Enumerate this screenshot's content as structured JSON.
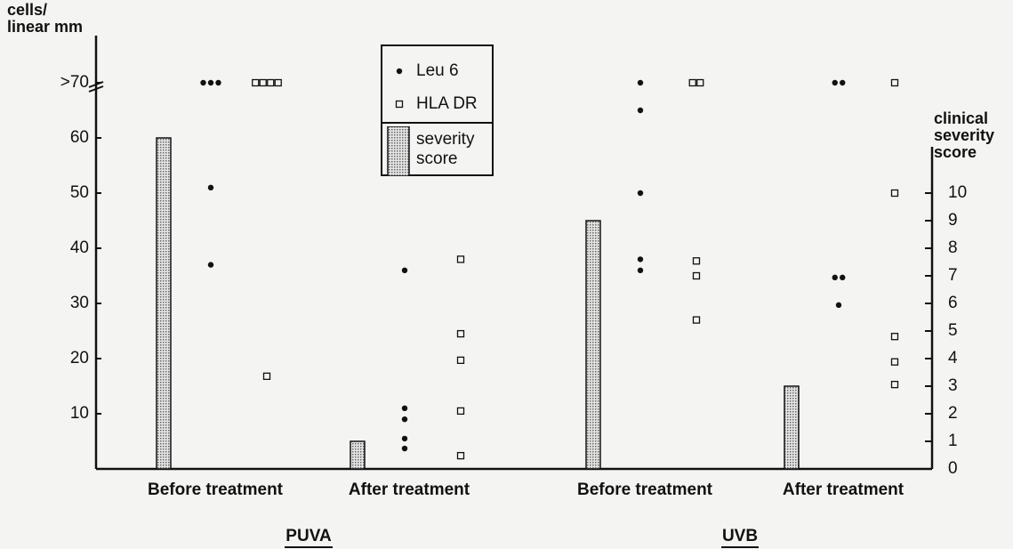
{
  "chart_data": {
    "type": "dotplot",
    "y_label": "cells/\nlinear mm",
    "y2_label": "clinical\nseverity\nscore",
    "ylim": [
      0,
      70
    ],
    "yticks": [
      10,
      20,
      30,
      40,
      50,
      60,
      {
        "value": 70,
        "label": ">70"
      }
    ],
    "y2lim": [
      0,
      14
    ],
    "y2ticks": [
      0,
      1,
      2,
      3,
      4,
      5,
      6,
      7,
      8,
      9,
      10
    ],
    "groups": [
      {
        "name": "PUVA",
        "categories": [
          "Before treatment",
          "After treatment"
        ]
      },
      {
        "name": "UVB",
        "categories": [
          "Before treatment",
          "After treatment"
        ]
      }
    ],
    "series": [
      {
        "name": "Leu 6",
        "marker": "filled",
        "color": "#111111",
        "values": [
          [
            [
              70,
              70,
              70,
              51,
              37
            ],
            [
              36,
              11,
              9,
              5.5,
              3.7
            ]
          ],
          [
            [
              70,
              65,
              50,
              38,
              36
            ],
            [
              70,
              70,
              34.7,
              34.7,
              29.7
            ]
          ]
        ]
      },
      {
        "name": "HLA DR",
        "marker": "open",
        "color": "#111111",
        "values": [
          [
            [
              70,
              70,
              70,
              70,
              16.8
            ],
            [
              38,
              24.5,
              19.7,
              10.5,
              2.4
            ]
          ],
          [
            [
              70,
              70,
              37.7,
              35,
              27
            ],
            [
              70,
              50,
              24,
              19.4,
              15.3
            ]
          ]
        ]
      },
      {
        "name": "severity score",
        "marker": "bar",
        "axis": "y2",
        "color": "#9a9a9a",
        "values": [
          [
            12,
            1
          ],
          [
            9,
            3
          ]
        ]
      }
    ]
  }
}
